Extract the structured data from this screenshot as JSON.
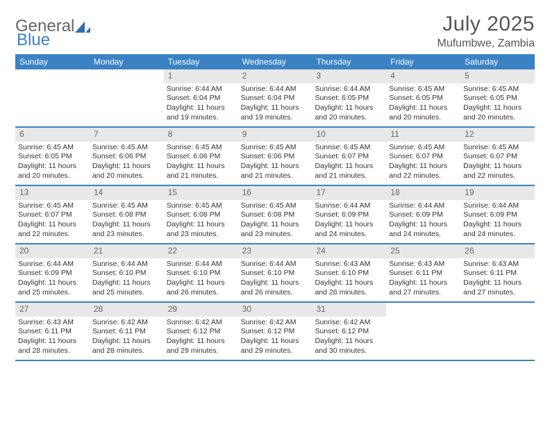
{
  "logo": {
    "text1": "General",
    "text2": "Blue"
  },
  "title": "July 2025",
  "location": "Mufumbwe, Zambia",
  "colors": {
    "header_bg": "#3b82c4",
    "header_text": "#ffffff",
    "daynum_bg": "#e8e8e8",
    "text": "#333333",
    "title_color": "#555555",
    "week_border": "#3b82c4"
  },
  "weekdays": [
    "Sunday",
    "Monday",
    "Tuesday",
    "Wednesday",
    "Thursday",
    "Friday",
    "Saturday"
  ],
  "weeks": [
    [
      {
        "empty": true
      },
      {
        "empty": true
      },
      {
        "day": "1",
        "sunrise": "Sunrise: 6:44 AM",
        "sunset": "Sunset: 6:04 PM",
        "daylight": "Daylight: 11 hours and 19 minutes."
      },
      {
        "day": "2",
        "sunrise": "Sunrise: 6:44 AM",
        "sunset": "Sunset: 6:04 PM",
        "daylight": "Daylight: 11 hours and 19 minutes."
      },
      {
        "day": "3",
        "sunrise": "Sunrise: 6:44 AM",
        "sunset": "Sunset: 6:05 PM",
        "daylight": "Daylight: 11 hours and 20 minutes."
      },
      {
        "day": "4",
        "sunrise": "Sunrise: 6:45 AM",
        "sunset": "Sunset: 6:05 PM",
        "daylight": "Daylight: 11 hours and 20 minutes."
      },
      {
        "day": "5",
        "sunrise": "Sunrise: 6:45 AM",
        "sunset": "Sunset: 6:05 PM",
        "daylight": "Daylight: 11 hours and 20 minutes."
      }
    ],
    [
      {
        "day": "6",
        "sunrise": "Sunrise: 6:45 AM",
        "sunset": "Sunset: 6:05 PM",
        "daylight": "Daylight: 11 hours and 20 minutes."
      },
      {
        "day": "7",
        "sunrise": "Sunrise: 6:45 AM",
        "sunset": "Sunset: 6:06 PM",
        "daylight": "Daylight: 11 hours and 20 minutes."
      },
      {
        "day": "8",
        "sunrise": "Sunrise: 6:45 AM",
        "sunset": "Sunset: 6:06 PM",
        "daylight": "Daylight: 11 hours and 21 minutes."
      },
      {
        "day": "9",
        "sunrise": "Sunrise: 6:45 AM",
        "sunset": "Sunset: 6:06 PM",
        "daylight": "Daylight: 11 hours and 21 minutes."
      },
      {
        "day": "10",
        "sunrise": "Sunrise: 6:45 AM",
        "sunset": "Sunset: 6:07 PM",
        "daylight": "Daylight: 11 hours and 21 minutes."
      },
      {
        "day": "11",
        "sunrise": "Sunrise: 6:45 AM",
        "sunset": "Sunset: 6:07 PM",
        "daylight": "Daylight: 11 hours and 22 minutes."
      },
      {
        "day": "12",
        "sunrise": "Sunrise: 6:45 AM",
        "sunset": "Sunset: 6:07 PM",
        "daylight": "Daylight: 11 hours and 22 minutes."
      }
    ],
    [
      {
        "day": "13",
        "sunrise": "Sunrise: 6:45 AM",
        "sunset": "Sunset: 6:07 PM",
        "daylight": "Daylight: 11 hours and 22 minutes."
      },
      {
        "day": "14",
        "sunrise": "Sunrise: 6:45 AM",
        "sunset": "Sunset: 6:08 PM",
        "daylight": "Daylight: 11 hours and 23 minutes."
      },
      {
        "day": "15",
        "sunrise": "Sunrise: 6:45 AM",
        "sunset": "Sunset: 6:08 PM",
        "daylight": "Daylight: 11 hours and 23 minutes."
      },
      {
        "day": "16",
        "sunrise": "Sunrise: 6:45 AM",
        "sunset": "Sunset: 6:08 PM",
        "daylight": "Daylight: 11 hours and 23 minutes."
      },
      {
        "day": "17",
        "sunrise": "Sunrise: 6:44 AM",
        "sunset": "Sunset: 6:09 PM",
        "daylight": "Daylight: 11 hours and 24 minutes."
      },
      {
        "day": "18",
        "sunrise": "Sunrise: 6:44 AM",
        "sunset": "Sunset: 6:09 PM",
        "daylight": "Daylight: 11 hours and 24 minutes."
      },
      {
        "day": "19",
        "sunrise": "Sunrise: 6:44 AM",
        "sunset": "Sunset: 6:09 PM",
        "daylight": "Daylight: 11 hours and 24 minutes."
      }
    ],
    [
      {
        "day": "20",
        "sunrise": "Sunrise: 6:44 AM",
        "sunset": "Sunset: 6:09 PM",
        "daylight": "Daylight: 11 hours and 25 minutes."
      },
      {
        "day": "21",
        "sunrise": "Sunrise: 6:44 AM",
        "sunset": "Sunset: 6:10 PM",
        "daylight": "Daylight: 11 hours and 25 minutes."
      },
      {
        "day": "22",
        "sunrise": "Sunrise: 6:44 AM",
        "sunset": "Sunset: 6:10 PM",
        "daylight": "Daylight: 11 hours and 26 minutes."
      },
      {
        "day": "23",
        "sunrise": "Sunrise: 6:44 AM",
        "sunset": "Sunset: 6:10 PM",
        "daylight": "Daylight: 11 hours and 26 minutes."
      },
      {
        "day": "24",
        "sunrise": "Sunrise: 6:43 AM",
        "sunset": "Sunset: 6:10 PM",
        "daylight": "Daylight: 11 hours and 26 minutes."
      },
      {
        "day": "25",
        "sunrise": "Sunrise: 6:43 AM",
        "sunset": "Sunset: 6:11 PM",
        "daylight": "Daylight: 11 hours and 27 minutes."
      },
      {
        "day": "26",
        "sunrise": "Sunrise: 6:43 AM",
        "sunset": "Sunset: 6:11 PM",
        "daylight": "Daylight: 11 hours and 27 minutes."
      }
    ],
    [
      {
        "day": "27",
        "sunrise": "Sunrise: 6:43 AM",
        "sunset": "Sunset: 6:11 PM",
        "daylight": "Daylight: 11 hours and 28 minutes."
      },
      {
        "day": "28",
        "sunrise": "Sunrise: 6:42 AM",
        "sunset": "Sunset: 6:11 PM",
        "daylight": "Daylight: 11 hours and 28 minutes."
      },
      {
        "day": "29",
        "sunrise": "Sunrise: 6:42 AM",
        "sunset": "Sunset: 6:12 PM",
        "daylight": "Daylight: 11 hours and 29 minutes."
      },
      {
        "day": "30",
        "sunrise": "Sunrise: 6:42 AM",
        "sunset": "Sunset: 6:12 PM",
        "daylight": "Daylight: 11 hours and 29 minutes."
      },
      {
        "day": "31",
        "sunrise": "Sunrise: 6:42 AM",
        "sunset": "Sunset: 6:12 PM",
        "daylight": "Daylight: 11 hours and 30 minutes."
      },
      {
        "empty": true
      },
      {
        "empty": true
      }
    ]
  ]
}
